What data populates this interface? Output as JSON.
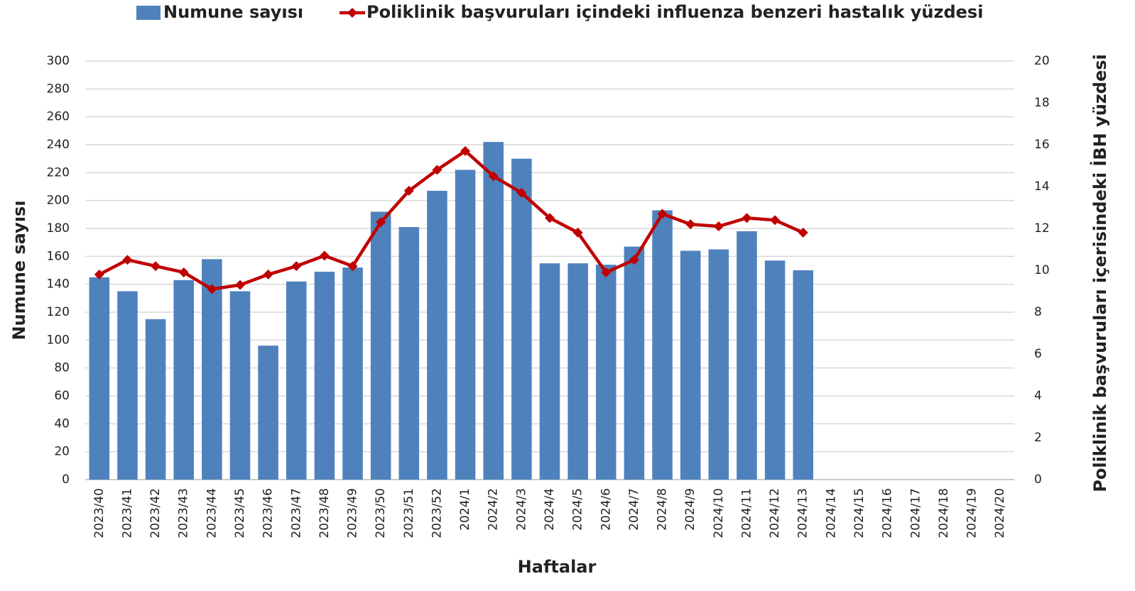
{
  "chart_data": {
    "type": "bar-line",
    "categories": [
      "2023/40",
      "2023/41",
      "2023/42",
      "2023/43",
      "2023/44",
      "2023/45",
      "2023/46",
      "2023/47",
      "2023/48",
      "2023/49",
      "2023/50",
      "2023/51",
      "2023/52",
      "2024/1",
      "2024/2",
      "2024/3",
      "2024/4",
      "2024/5",
      "2024/6",
      "2024/7",
      "2024/8",
      "2024/9",
      "2024/10",
      "2024/11",
      "2024/12",
      "2024/13",
      "2024/14",
      "2024/15",
      "2024/16",
      "2024/17",
      "2024/18",
      "2024/19",
      "2024/20"
    ],
    "series": [
      {
        "name": "Numune sayısı",
        "type": "bar",
        "color": "#4f81bd",
        "values": [
          145,
          135,
          115,
          143,
          158,
          135,
          96,
          142,
          149,
          152,
          192,
          181,
          207,
          222,
          242,
          230,
          155,
          155,
          154,
          167,
          193,
          164,
          165,
          178,
          157,
          150,
          null,
          null,
          null,
          null,
          null,
          null,
          null
        ]
      },
      {
        "name": "Poliklinik başvuruları içindeki influenza benzeri hastalık yüzdesi",
        "type": "line",
        "axis": "y2",
        "color": "#c00000",
        "values": [
          9.8,
          10.5,
          10.2,
          9.9,
          9.1,
          9.3,
          9.8,
          10.2,
          10.7,
          10.2,
          12.3,
          13.8,
          14.8,
          15.7,
          14.5,
          13.7,
          12.5,
          11.8,
          9.9,
          10.5,
          12.7,
          12.2,
          12.1,
          12.5,
          12.4,
          11.8,
          null,
          null,
          null,
          null,
          null,
          null,
          null
        ]
      }
    ],
    "x_label": "Haftalar",
    "y_label": "Numune sayısı",
    "y2_label": "Poliklinik başvuruları içerisindeki İBH yüzdesi",
    "ylim": [
      0,
      300
    ],
    "yticks": [
      0,
      20,
      40,
      60,
      80,
      100,
      120,
      140,
      160,
      180,
      200,
      220,
      240,
      260,
      280,
      300
    ],
    "y2lim": [
      0,
      20
    ],
    "y2ticks": [
      0,
      2,
      4,
      6,
      8,
      10,
      12,
      14,
      16,
      18,
      20
    ],
    "grid": true,
    "legend": "top"
  }
}
